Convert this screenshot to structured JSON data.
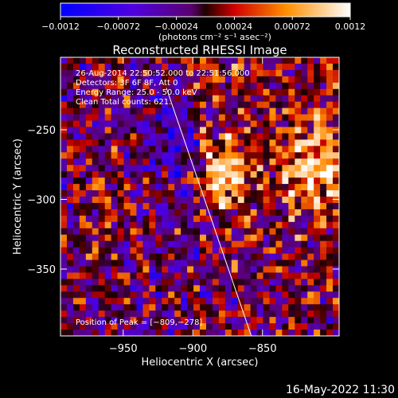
{
  "chart_data": {
    "type": "heatmap",
    "title": "Reconstructed RHESSI Image",
    "xlabel": "Heliocentric X (arcsec)",
    "ylabel": "Heliocentric Y (arcsec)",
    "xlim": [
      -995,
      -795
    ],
    "ylim": [
      -398,
      -198
    ],
    "x_ticks": [
      -950,
      -900,
      -850
    ],
    "x_tick_labels": [
      "−950",
      "−900",
      "−850"
    ],
    "y_ticks": [
      -250,
      -300,
      -350
    ],
    "y_tick_labels": [
      "−250",
      "−300",
      "−350"
    ],
    "colorbar": {
      "range": [
        -0.0012,
        0.0012
      ],
      "tick_values": [
        -0.0012,
        -0.00072,
        -0.00024,
        0.00024,
        0.00072,
        0.0012
      ],
      "tick_labels": [
        "−0.0012",
        "−0.00072",
        "−0.00024",
        "0.00024",
        "0.00072",
        "0.0012"
      ],
      "unit_label": "(photons cm⁻² s⁻¹ asec⁻²)",
      "colors": [
        "#000000",
        "#0000ff",
        "#7a00c8",
        "#ff0000",
        "#ffa000",
        "#ffffff"
      ]
    },
    "info_lines": [
      "26-Aug-2014 22:50:52.000 to 22:51:56.000",
      "Detectors: 3F 6F 8F, Att 0",
      "Energy Range: 25.0 - 50.0 keV",
      "Clean     Total counts: 621."
    ],
    "peak_label": "Position of Peak = [−809,−278]",
    "peak": [
      -809,
      -278
    ],
    "limb_line": [
      [
        -919,
        -220
      ],
      [
        -858,
        -398
      ]
    ],
    "grid": false
  },
  "footer": {
    "timestamp": "16-May-2022 11:30"
  }
}
